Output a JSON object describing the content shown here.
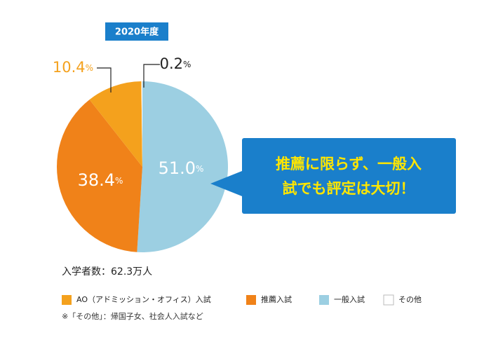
{
  "chart_data": {
    "type": "pie",
    "title": "2020年度",
    "categories": [
      "一般入試",
      "推薦入試",
      "AO（アドミッション・オフィス）入試",
      "その他"
    ],
    "values": [
      51.0,
      38.4,
      10.4,
      0.2
    ],
    "value_labels": [
      "51.0",
      "38.4",
      "10.4",
      "0.2"
    ],
    "unit": "%",
    "colors": [
      "#9ccfe2",
      "#f08219",
      "#f4a11d",
      "#ffffff"
    ],
    "note": "入学者数：62.3万人",
    "footnote": "※「その他」：帰国子女、社会人入試など",
    "callout": [
      "推薦に限らず、一般入",
      "試でも評定は大切！"
    ]
  }
}
